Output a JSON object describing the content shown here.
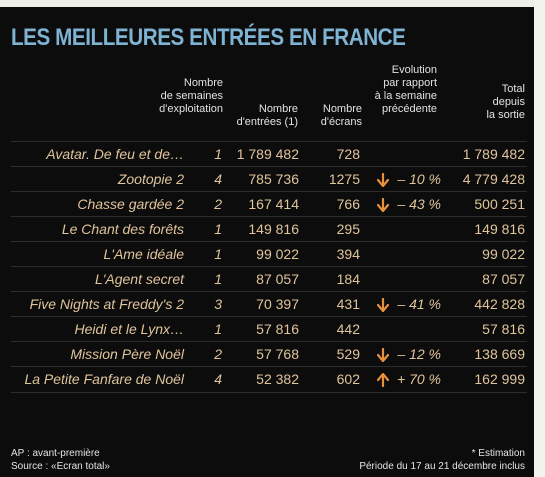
{
  "title": "LES MEILLEURES ENTRÉES EN FRANCE",
  "headers": {
    "weeks": "Nombre\nde semaines\nd'exploitation",
    "entries": "Nombre\nd'entrées (1)",
    "screens": "Nombre\nd'écrans",
    "evolution": "Evolution\npar rapport\nà la semaine\nprécédente",
    "total": "Total\ndepuis\nla sortie"
  },
  "rows": [
    {
      "film": "Avatar. De feu et de…",
      "weeks": "1",
      "entries": "1 789 482",
      "screens": "728",
      "trend": "",
      "evolution": "",
      "total": "1 789 482"
    },
    {
      "film": "Zootopie 2",
      "weeks": "4",
      "entries": "785 736",
      "screens": "1275",
      "trend": "down",
      "evolution": "– 10 %",
      "total": "4 779 428"
    },
    {
      "film": "Chasse gardée 2",
      "weeks": "2",
      "entries": "167 414",
      "screens": "766",
      "trend": "down",
      "evolution": "– 43 %",
      "total": "500 251"
    },
    {
      "film": "Le Chant des forêts",
      "weeks": "1",
      "entries": "149 816",
      "screens": "295",
      "trend": "",
      "evolution": "",
      "total": "149 816"
    },
    {
      "film": "L'Ame idéale",
      "weeks": "1",
      "entries": "99 022",
      "screens": "394",
      "trend": "",
      "evolution": "",
      "total": "99 022"
    },
    {
      "film": "L'Agent secret",
      "weeks": "1",
      "entries": "87 057",
      "screens": "184",
      "trend": "",
      "evolution": "",
      "total": "87 057"
    },
    {
      "film": "Five Nights at Freddy's 2",
      "weeks": "3",
      "entries": "70 397",
      "screens": "431",
      "trend": "down",
      "evolution": "– 41 %",
      "total": "442 828"
    },
    {
      "film": "Heidi et le Lynx…",
      "weeks": "1",
      "entries": "57 816",
      "screens": "442",
      "trend": "",
      "evolution": "",
      "total": "57 816"
    },
    {
      "film": "Mission Père Noël",
      "weeks": "2",
      "entries": "57 768",
      "screens": "529",
      "trend": "down",
      "evolution": "– 12 %",
      "total": "138 669"
    },
    {
      "film": "La Petite Fanfare de Noël",
      "weeks": "4",
      "entries": "52 382",
      "screens": "602",
      "trend": "up",
      "evolution": "+ 70 %",
      "total": "162 999"
    }
  ],
  "footer": {
    "ap": "AP : avant-première",
    "source": "Source : «Ecran total»",
    "estimation": "* Estimation",
    "period": "Période du 17 au 21 décembre inclus"
  },
  "colors": {
    "title": "#7fb3d3",
    "text": "#e0c49c",
    "arrow": "#e8913a",
    "background": "#0c0c0c"
  }
}
